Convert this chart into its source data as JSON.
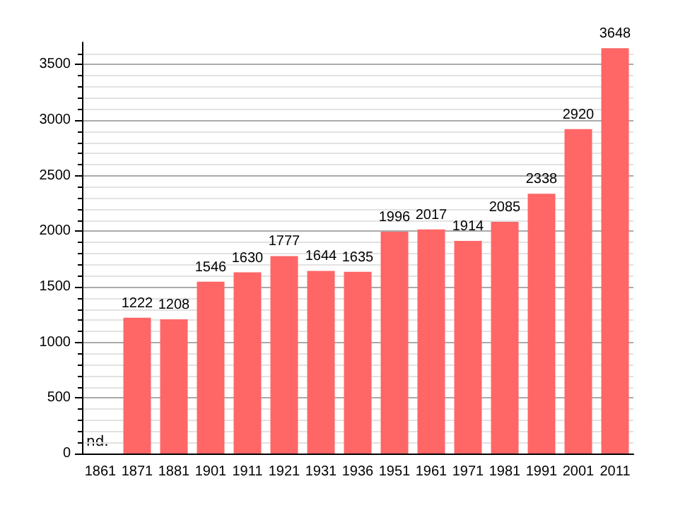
{
  "chart_data": {
    "type": "bar",
    "categories": [
      "1861",
      "1871",
      "1881",
      "1901",
      "1911",
      "1921",
      "1931",
      "1936",
      "1951",
      "1961",
      "1971",
      "1981",
      "1991",
      "2001",
      "2011"
    ],
    "values": [
      null,
      1222,
      1208,
      1546,
      1630,
      1777,
      1644,
      1635,
      1996,
      2017,
      1914,
      2085,
      2338,
      2920,
      3648
    ],
    "color": "#ff6666",
    "ylim": [
      0,
      3700
    ],
    "yticks": [
      0,
      500,
      1000,
      1500,
      2000,
      2500,
      3000,
      3500
    ],
    "grid": "y",
    "data_labels": true,
    "annotations": [
      "nd."
    ]
  }
}
